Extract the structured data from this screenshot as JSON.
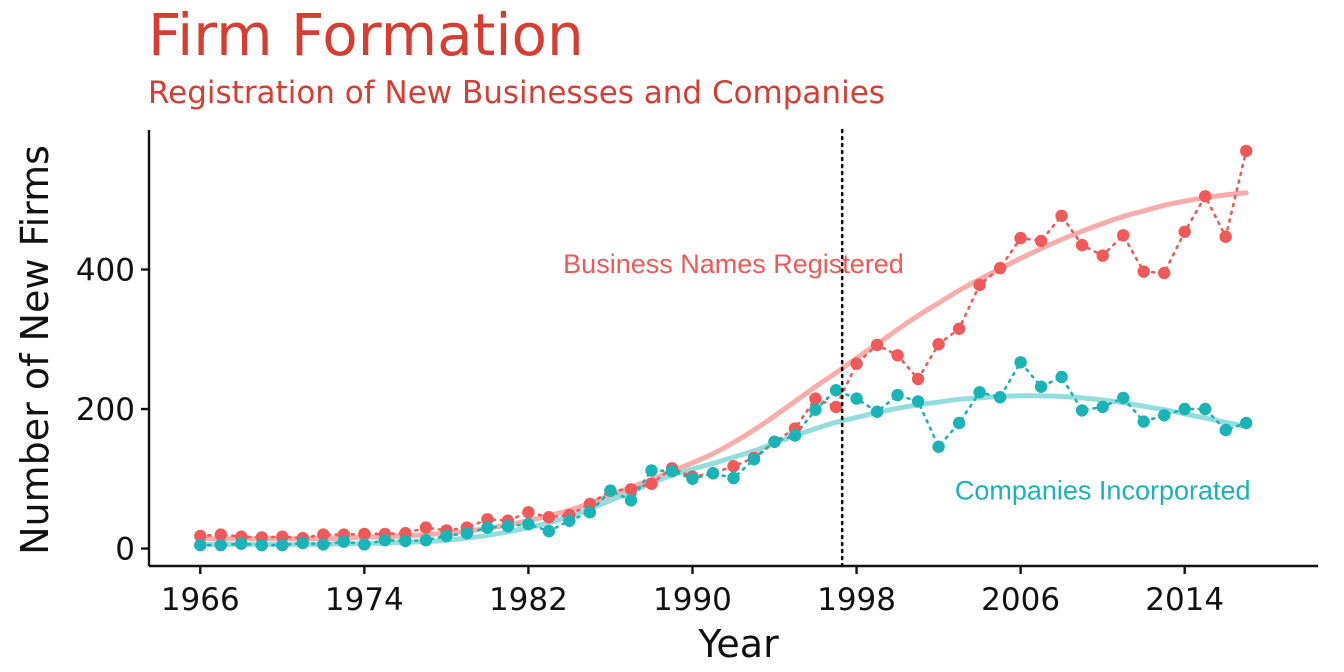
{
  "chart_data": {
    "type": "scatter",
    "title": "Firm Formation",
    "subtitle": "Registration of New Businesses and Companies",
    "xlabel": "Year",
    "ylabel": "Number of New Firms",
    "xlim": [
      1963.5,
      2020.5
    ],
    "ylim": [
      -25,
      600
    ],
    "xticks": [
      "1966",
      "1974",
      "1982",
      "1990",
      "1998",
      "2006",
      "2014"
    ],
    "yticks": [
      "0",
      "200",
      "400"
    ],
    "vline": 1997.3,
    "grid": false,
    "legend": "none",
    "x": [
      1966,
      1967,
      1968,
      1969,
      1970,
      1971,
      1972,
      1973,
      1974,
      1975,
      1976,
      1977,
      1978,
      1979,
      1980,
      1981,
      1982,
      1983,
      1984,
      1985,
      1986,
      1987,
      1988,
      1989,
      1990,
      1991,
      1992,
      1993,
      1994,
      1995,
      1996,
      1997,
      1998,
      1999,
      2000,
      2001,
      2002,
      2003,
      2004,
      2005,
      2006,
      2007,
      2008,
      2009,
      2010,
      2011,
      2012,
      2013,
      2014,
      2015,
      2016,
      2017
    ],
    "series": [
      {
        "name": "Business Names Registered",
        "color": "#f0595a",
        "label_year": 1992,
        "label_value": 395,
        "values": [
          18,
          20,
          17,
          16,
          17,
          15,
          20,
          20,
          21,
          21,
          22,
          30,
          26,
          30,
          42,
          40,
          52,
          45,
          48,
          64,
          83,
          85,
          93,
          115,
          103,
          108,
          118,
          130,
          153,
          172,
          215,
          203,
          265,
          292,
          277,
          243,
          293,
          315,
          378,
          402,
          445,
          441,
          477,
          435,
          420,
          449,
          397,
          395,
          454,
          505,
          447,
          570
        ],
        "trend": [
          14,
          14,
          14,
          14,
          14,
          14,
          14,
          15,
          16,
          17,
          18,
          20,
          22,
          25,
          29,
          34,
          40,
          47,
          55,
          65,
          76,
          88,
          99,
          111,
          123,
          136,
          152,
          170,
          190,
          211,
          232,
          252,
          273,
          293,
          314,
          334,
          352,
          370,
          386,
          401,
          416,
          430,
          443,
          455,
          466,
          476,
          484,
          492,
          498,
          503,
          507,
          510
        ]
      },
      {
        "name": "Companies Incorporated",
        "color": "#1ab3b6",
        "label_year": 2010,
        "label_value": 70,
        "values": [
          5,
          5,
          7,
          5,
          5,
          8,
          6,
          10,
          6,
          12,
          11,
          12,
          18,
          22,
          30,
          32,
          35,
          25,
          40,
          52,
          83,
          69,
          112,
          111,
          100,
          108,
          101,
          128,
          153,
          162,
          199,
          227,
          215,
          196,
          220,
          211,
          146,
          180,
          224,
          217,
          267,
          232,
          246,
          198,
          203,
          216,
          182,
          191,
          200,
          200,
          170,
          180
        ],
        "trend": [
          6,
          6,
          6,
          6,
          6,
          6,
          6,
          7,
          7,
          8,
          9,
          10,
          12,
          15,
          19,
          24,
          30,
          37,
          46,
          57,
          69,
          81,
          94,
          105,
          114,
          122,
          131,
          140,
          151,
          162,
          172,
          181,
          188,
          195,
          201,
          206,
          210,
          214,
          216,
          218,
          219,
          219,
          218,
          216,
          213,
          209,
          204,
          199,
          193,
          187,
          181,
          175
        ]
      }
    ]
  }
}
